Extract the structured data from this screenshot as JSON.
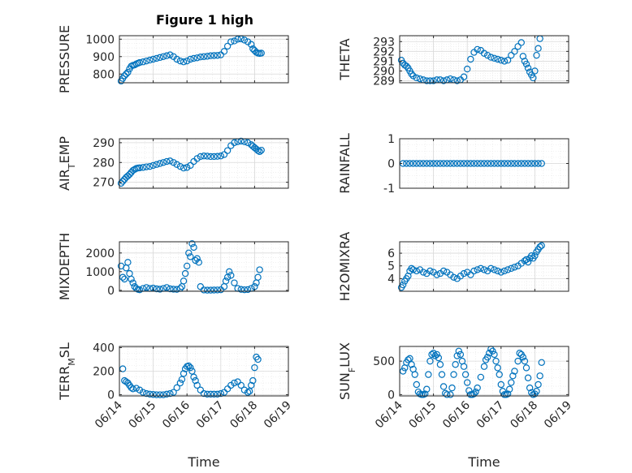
{
  "figure": {
    "title": "Figure 1 high",
    "marker_color": "#0072bd",
    "grid": true,
    "minor_grid": true
  },
  "chart_data": [
    {
      "type": "scatter",
      "ylabel": "PRESSURE",
      "xlabel": "",
      "title": "Figure 1 high",
      "xlim": [
        0,
        5
      ],
      "ylim": [
        750,
        1020
      ],
      "yticks": [
        800,
        900,
        1000
      ],
      "show_xticklabels": false,
      "x": [
        0.05,
        0.1,
        0.15,
        0.2,
        0.25,
        0.3,
        0.35,
        0.4,
        0.45,
        0.5,
        0.55,
        0.6,
        0.7,
        0.8,
        0.9,
        1.0,
        1.1,
        1.2,
        1.3,
        1.4,
        1.5,
        1.6,
        1.7,
        1.8,
        1.9,
        2.0,
        2.1,
        2.2,
        2.3,
        2.4,
        2.5,
        2.6,
        2.7,
        2.8,
        2.9,
        3.0,
        3.1,
        3.2,
        3.3,
        3.4,
        3.5,
        3.6,
        3.7,
        3.8,
        3.9,
        3.95,
        4.0,
        4.05,
        4.1,
        4.15,
        4.2
      ],
      "y": [
        760,
        775,
        790,
        800,
        810,
        830,
        845,
        850,
        852,
        858,
        862,
        866,
        870,
        875,
        880,
        885,
        890,
        895,
        900,
        905,
        910,
        900,
        885,
        875,
        870,
        875,
        885,
        890,
        893,
        898,
        900,
        902,
        905,
        906,
        907,
        910,
        930,
        960,
        985,
        990,
        1000,
        1002,
        995,
        985,
        970,
        945,
        935,
        925,
        920,
        918,
        920
      ]
    },
    {
      "type": "scatter",
      "ylabel": "THETA",
      "xlabel": "",
      "title": "",
      "xlim": [
        0,
        5
      ],
      "ylim": [
        288.8,
        293.6
      ],
      "yticks": [
        289,
        290,
        291,
        292,
        293
      ],
      "show_xticklabels": false,
      "x": [
        0.05,
        0.1,
        0.15,
        0.2,
        0.25,
        0.3,
        0.35,
        0.4,
        0.5,
        0.6,
        0.7,
        0.8,
        0.9,
        1.0,
        1.1,
        1.2,
        1.3,
        1.4,
        1.5,
        1.6,
        1.7,
        1.8,
        1.9,
        2.0,
        2.1,
        2.2,
        2.3,
        2.4,
        2.5,
        2.6,
        2.7,
        2.8,
        2.9,
        3.0,
        3.1,
        3.2,
        3.3,
        3.4,
        3.5,
        3.6,
        3.65,
        3.7,
        3.75,
        3.8,
        3.85,
        3.9,
        3.95,
        4.0,
        4.05,
        4.1,
        4.15
      ],
      "y": [
        291.1,
        290.8,
        290.6,
        290.5,
        290.3,
        290.0,
        289.7,
        289.5,
        289.3,
        289.2,
        289.1,
        289.0,
        289.0,
        289.0,
        289.1,
        289.1,
        289.0,
        289.1,
        289.2,
        289.1,
        289.0,
        289.1,
        289.4,
        290.2,
        291.2,
        291.9,
        292.2,
        292.1,
        291.8,
        291.6,
        291.4,
        291.3,
        291.2,
        291.1,
        291.0,
        291.1,
        291.6,
        292.0,
        292.5,
        292.9,
        291.5,
        291.0,
        290.7,
        290.3,
        289.9,
        289.6,
        289.3,
        290.0,
        291.6,
        292.3,
        293.3
      ]
    },
    {
      "type": "scatter",
      "ylabel": "AIR_TEMP",
      "xlabel": "",
      "title": "",
      "xlim": [
        0,
        5
      ],
      "ylim": [
        267,
        292
      ],
      "yticks": [
        270,
        280,
        290
      ],
      "show_xticklabels": false,
      "x": [
        0.05,
        0.1,
        0.15,
        0.2,
        0.25,
        0.3,
        0.35,
        0.4,
        0.45,
        0.5,
        0.55,
        0.6,
        0.7,
        0.8,
        0.9,
        1.0,
        1.1,
        1.2,
        1.3,
        1.4,
        1.5,
        1.6,
        1.7,
        1.8,
        1.9,
        2.0,
        2.1,
        2.2,
        2.3,
        2.4,
        2.5,
        2.6,
        2.7,
        2.8,
        2.9,
        3.0,
        3.1,
        3.2,
        3.3,
        3.4,
        3.5,
        3.6,
        3.7,
        3.8,
        3.9,
        3.95,
        4.0,
        4.05,
        4.1,
        4.15,
        4.2
      ],
      "y": [
        269.5,
        270.5,
        271.5,
        272.5,
        273.2,
        274.0,
        275.0,
        276.0,
        276.5,
        277.0,
        277.2,
        277.3,
        277.5,
        277.8,
        278.0,
        278.5,
        279.0,
        279.5,
        280.0,
        280.5,
        280.8,
        280.0,
        279.0,
        278.0,
        277.2,
        277.5,
        278.5,
        280.5,
        282.0,
        283.0,
        283.3,
        283.2,
        283.0,
        283.0,
        283.1,
        283.3,
        284.0,
        286.0,
        288.5,
        290.0,
        290.5,
        290.8,
        290.5,
        290.0,
        289.0,
        288.2,
        287.5,
        286.8,
        286.0,
        285.5,
        286.2
      ]
    },
    {
      "type": "scatter",
      "ylabel": "RAINFALL",
      "xlabel": "",
      "title": "",
      "xlim": [
        0,
        5
      ],
      "ylim": [
        -1,
        1
      ],
      "yticks": [
        -1,
        0,
        1
      ],
      "show_xticklabels": false,
      "x": [
        0.1,
        0.2,
        0.3,
        0.4,
        0.5,
        0.6,
        0.7,
        0.8,
        0.9,
        1.0,
        1.1,
        1.2,
        1.3,
        1.4,
        1.5,
        1.6,
        1.7,
        1.8,
        1.9,
        2.0,
        2.1,
        2.2,
        2.3,
        2.4,
        2.5,
        2.6,
        2.7,
        2.8,
        2.9,
        3.0,
        3.1,
        3.2,
        3.3,
        3.4,
        3.5,
        3.6,
        3.7,
        3.8,
        3.9,
        4.0,
        4.1,
        4.2
      ],
      "y": [
        0,
        0,
        0,
        0,
        0,
        0,
        0,
        0,
        0,
        0,
        0,
        0,
        0,
        0,
        0,
        0,
        0,
        0,
        0,
        0,
        0,
        0,
        0,
        0,
        0,
        0,
        0,
        0,
        0,
        0,
        0,
        0,
        0,
        0,
        0,
        0,
        0,
        0,
        0,
        0,
        0,
        0
      ]
    },
    {
      "type": "scatter",
      "ylabel": "MIXDEPTH",
      "xlabel": "",
      "title": "",
      "xlim": [
        0,
        5
      ],
      "ylim": [
        -50,
        2600
      ],
      "yticks": [
        0,
        1000,
        2000
      ],
      "show_xticklabels": false,
      "x": [
        0.05,
        0.1,
        0.15,
        0.2,
        0.25,
        0.3,
        0.35,
        0.4,
        0.45,
        0.5,
        0.55,
        0.6,
        0.7,
        0.8,
        0.9,
        1.0,
        1.1,
        1.2,
        1.3,
        1.4,
        1.5,
        1.6,
        1.7,
        1.8,
        1.85,
        1.9,
        1.95,
        2.0,
        2.05,
        2.1,
        2.15,
        2.2,
        2.25,
        2.3,
        2.35,
        2.4,
        2.5,
        2.6,
        2.7,
        2.8,
        2.9,
        3.0,
        3.1,
        3.15,
        3.2,
        3.25,
        3.3,
        3.4,
        3.5,
        3.6,
        3.7,
        3.8,
        3.9,
        4.0,
        4.05,
        4.1,
        4.15
      ],
      "y": [
        1300,
        700,
        600,
        1200,
        1500,
        900,
        600,
        400,
        200,
        100,
        50,
        30,
        100,
        150,
        100,
        120,
        80,
        60,
        100,
        150,
        80,
        60,
        50,
        100,
        200,
        500,
        900,
        1300,
        2000,
        1800,
        2500,
        2300,
        1600,
        1700,
        1500,
        200,
        20,
        10,
        10,
        15,
        20,
        30,
        200,
        500,
        700,
        1000,
        800,
        400,
        100,
        50,
        30,
        40,
        100,
        200,
        400,
        700,
        1100
      ]
    },
    {
      "type": "scatter",
      "ylabel": "H2OMIXRA",
      "xlabel": "",
      "title": "",
      "xlim": [
        0,
        5
      ],
      "ylim": [
        3,
        6.9
      ],
      "yticks": [
        4,
        5,
        6
      ],
      "show_xticklabels": false,
      "x": [
        0.05,
        0.1,
        0.15,
        0.2,
        0.25,
        0.3,
        0.35,
        0.4,
        0.5,
        0.6,
        0.7,
        0.8,
        0.9,
        1.0,
        1.1,
        1.2,
        1.3,
        1.4,
        1.5,
        1.6,
        1.7,
        1.8,
        1.9,
        2.0,
        2.1,
        2.2,
        2.3,
        2.4,
        2.5,
        2.6,
        2.7,
        2.8,
        2.9,
        3.0,
        3.1,
        3.2,
        3.3,
        3.4,
        3.5,
        3.6,
        3.7,
        3.75,
        3.8,
        3.85,
        3.9,
        3.95,
        4.0,
        4.05,
        4.1,
        4.15,
        4.2
      ],
      "y": [
        3.3,
        3.5,
        3.8,
        4.0,
        4.2,
        4.6,
        4.8,
        4.7,
        4.6,
        4.7,
        4.5,
        4.4,
        4.6,
        4.5,
        4.3,
        4.4,
        4.6,
        4.5,
        4.3,
        4.1,
        4.0,
        4.2,
        4.4,
        4.5,
        4.3,
        4.6,
        4.7,
        4.8,
        4.7,
        4.6,
        4.8,
        4.7,
        4.6,
        4.5,
        4.6,
        4.7,
        4.8,
        4.9,
        5.0,
        5.2,
        5.4,
        5.5,
        5.3,
        5.6,
        5.8,
        5.6,
        5.8,
        6.1,
        6.3,
        6.5,
        6.6
      ]
    },
    {
      "type": "scatter",
      "ylabel": "TERR_MSL",
      "xlabel": "Time",
      "title": "",
      "xlim": [
        0,
        5
      ],
      "ylim": [
        -10,
        410
      ],
      "yticks": [
        0,
        200,
        400
      ],
      "xticks": [
        0,
        1,
        2,
        3,
        4,
        5
      ],
      "xticklabels": [
        "06/14",
        "06/15",
        "06/16",
        "06/17",
        "06/18",
        "06/19"
      ],
      "x": [
        0.1,
        0.15,
        0.2,
        0.25,
        0.3,
        0.35,
        0.4,
        0.5,
        0.6,
        0.7,
        0.8,
        0.9,
        1.0,
        1.1,
        1.2,
        1.3,
        1.4,
        1.5,
        1.6,
        1.7,
        1.8,
        1.85,
        1.9,
        1.95,
        2.0,
        2.05,
        2.1,
        2.15,
        2.2,
        2.25,
        2.3,
        2.4,
        2.5,
        2.6,
        2.7,
        2.8,
        2.9,
        3.0,
        3.1,
        3.2,
        3.3,
        3.4,
        3.5,
        3.6,
        3.7,
        3.8,
        3.85,
        3.9,
        3.95,
        4.0,
        4.05,
        4.1
      ],
      "y": [
        220,
        120,
        110,
        100,
        80,
        60,
        50,
        55,
        40,
        20,
        10,
        5,
        2,
        0,
        0,
        0,
        5,
        10,
        20,
        60,
        100,
        130,
        180,
        220,
        240,
        245,
        230,
        200,
        150,
        120,
        80,
        40,
        10,
        5,
        5,
        5,
        5,
        10,
        20,
        50,
        80,
        100,
        110,
        80,
        40,
        20,
        30,
        80,
        120,
        230,
        320,
        300
      ]
    },
    {
      "type": "scatter",
      "ylabel": "SUN_FLUX",
      "xlabel": "Time",
      "title": "",
      "xlim": [
        0,
        5
      ],
      "ylim": [
        -20,
        720
      ],
      "yticks": [
        0,
        500
      ],
      "xticks": [
        0,
        1,
        2,
        3,
        4,
        5
      ],
      "xticklabels": [
        "06/14",
        "06/15",
        "06/16",
        "06/17",
        "06/18",
        "06/19"
      ],
      "x": [
        0.1,
        0.15,
        0.2,
        0.25,
        0.3,
        0.35,
        0.4,
        0.45,
        0.5,
        0.55,
        0.6,
        0.65,
        0.7,
        0.75,
        0.8,
        0.85,
        0.9,
        0.95,
        1.0,
        1.05,
        1.1,
        1.15,
        1.2,
        1.25,
        1.3,
        1.35,
        1.4,
        1.5,
        1.55,
        1.6,
        1.65,
        1.7,
        1.75,
        1.8,
        1.85,
        1.9,
        1.95,
        2.0,
        2.05,
        2.1,
        2.15,
        2.2,
        2.25,
        2.3,
        2.4,
        2.5,
        2.55,
        2.6,
        2.65,
        2.7,
        2.75,
        2.8,
        2.85,
        2.9,
        2.95,
        3.0,
        3.05,
        3.1,
        3.15,
        3.2,
        3.25,
        3.3,
        3.35,
        3.4,
        3.5,
        3.55,
        3.6,
        3.65,
        3.7,
        3.75,
        3.8,
        3.85,
        3.9,
        3.95,
        4.0,
        4.05,
        4.1,
        4.15,
        4.2
      ],
      "y": [
        350,
        400,
        480,
        520,
        540,
        450,
        380,
        300,
        150,
        40,
        10,
        0,
        0,
        10,
        80,
        300,
        500,
        600,
        620,
        580,
        600,
        550,
        450,
        300,
        120,
        20,
        0,
        0,
        100,
        300,
        450,
        580,
        650,
        600,
        500,
        420,
        300,
        180,
        60,
        0,
        0,
        10,
        40,
        100,
        260,
        420,
        520,
        560,
        620,
        680,
        650,
        600,
        500,
        400,
        300,
        150,
        50,
        0,
        0,
        10,
        80,
        180,
        280,
        350,
        500,
        620,
        600,
        560,
        500,
        400,
        250,
        100,
        30,
        0,
        10,
        50,
        150,
        280,
        480
      ]
    }
  ]
}
